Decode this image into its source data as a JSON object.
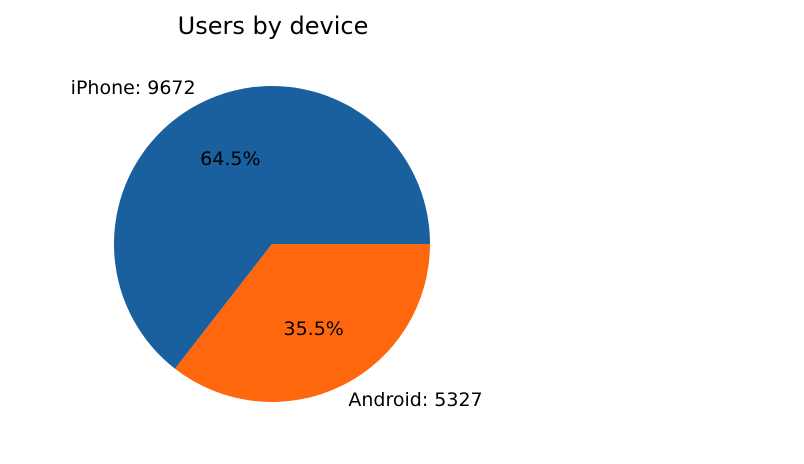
{
  "chart_data": {
    "type": "pie",
    "title": "Users by device",
    "slices": [
      {
        "label": "iPhone",
        "value": 9672,
        "percent_label": "64.5%",
        "color": "#1a5f9e"
      },
      {
        "label": "Android",
        "value": 5327,
        "percent_label": "35.5%",
        "color": "#ff670f"
      }
    ],
    "label_format": "{label}: {value}",
    "start_angle_deg": 0,
    "direction": "counterclockwise",
    "legend": "none"
  }
}
